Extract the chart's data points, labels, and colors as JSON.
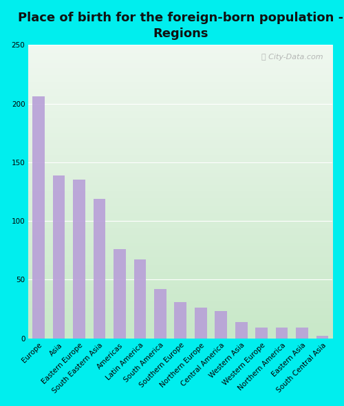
{
  "title": "Place of birth for the foreign-born population -\nRegions",
  "categories": [
    "Europe",
    "Asia",
    "Eastern Europe",
    "South Eastern Asia",
    "Americas",
    "Latin America",
    "South America",
    "Southern Europe",
    "Northern Europe",
    "Central America",
    "Western Asia",
    "Western Europe",
    "Northern America",
    "Eastern Asia",
    "South Central Asia"
  ],
  "values": [
    206,
    139,
    135,
    119,
    76,
    67,
    42,
    31,
    26,
    23,
    14,
    9,
    9,
    9,
    2
  ],
  "bar_color": "#b8a0d8",
  "background_color": "#00eeee",
  "plot_bg_top": "#f0f8f0",
  "plot_bg_bottom": "#c8e8c8",
  "grid_color": "#d0e8d0",
  "ylabel_values": [
    0,
    50,
    100,
    150,
    200,
    250
  ],
  "ylim": [
    0,
    250
  ],
  "title_fontsize": 13,
  "tick_fontsize": 7.5,
  "watermark": "City-Data.com",
  "bar_width": 0.6
}
